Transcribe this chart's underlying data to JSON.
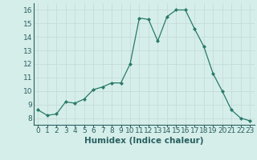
{
  "x": [
    0,
    1,
    2,
    3,
    4,
    5,
    6,
    7,
    8,
    9,
    10,
    11,
    12,
    13,
    14,
    15,
    16,
    17,
    18,
    19,
    20,
    21,
    22,
    23
  ],
  "y": [
    8.6,
    8.2,
    8.3,
    9.2,
    9.1,
    9.4,
    10.1,
    10.3,
    10.6,
    10.6,
    12.0,
    15.4,
    15.3,
    13.7,
    15.5,
    16.0,
    16.0,
    14.6,
    13.3,
    11.3,
    10.0,
    8.6,
    8.0,
    7.8
  ],
  "line_color": "#2a7a6a",
  "marker_color": "#2a7a6a",
  "bg_color": "#d5eeea",
  "grid_color": "#c8dcd8",
  "xlabel": "Humidex (Indice chaleur)",
  "xlim": [
    -0.5,
    23.5
  ],
  "ylim": [
    7.5,
    16.5
  ],
  "yticks": [
    8,
    9,
    10,
    11,
    12,
    13,
    14,
    15,
    16
  ],
  "font_color": "#2a6060",
  "xlabel_fontsize": 7.5,
  "tick_fontsize": 6.5
}
